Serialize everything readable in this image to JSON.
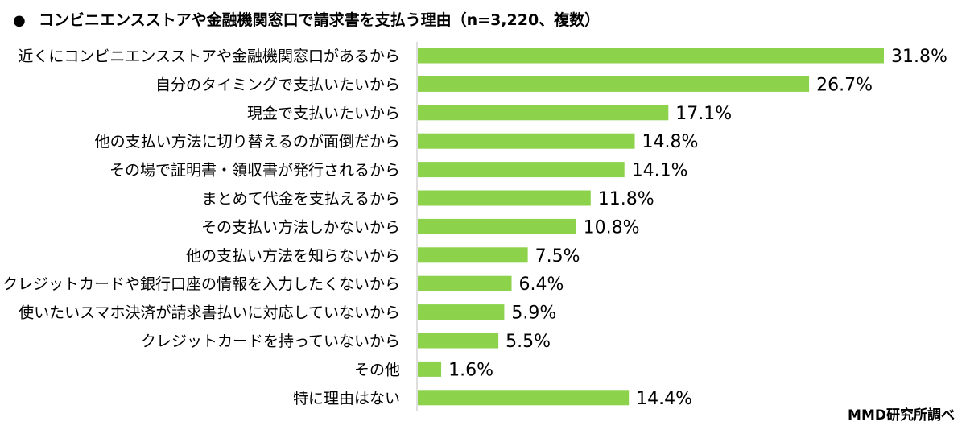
{
  "colors": {
    "bar": "#8cd24a",
    "axis": "#bfbfbf",
    "text": "#000000"
  },
  "title_bullet": "●",
  "source": "MMD研究所調べ",
  "chart_data": {
    "type": "bar",
    "orientation": "horizontal",
    "title": "コンビニエンスストアや金融機関窓口で請求書を支払う理由（n=3,220、複数）",
    "xlabel": "",
    "ylabel": "",
    "value_suffix": "%",
    "xlim": [
      0,
      31.8
    ],
    "grid": false,
    "legend": "none",
    "categories": [
      "近くにコンビニエンスストアや金融機関窓口があるから",
      "自分のタイミングで支払いたいから",
      "現金で支払いたいから",
      "他の支払い方法に切り替えるのが面倒だから",
      "その場で証明書・領収書が発行されるから",
      "まとめて代金を支払えるから",
      "その支払い方法しかないから",
      "他の支払い方法を知らないから",
      "クレジットカードや銀行口座の情報を入力したくないから",
      "使いたいスマホ決済が請求書払いに対応していないから",
      "クレジットカードを持っていないから",
      "その他",
      "特に理由はない"
    ],
    "values": [
      31.8,
      26.7,
      17.1,
      14.8,
      14.1,
      11.8,
      10.8,
      7.5,
      6.4,
      5.9,
      5.5,
      1.6,
      14.4
    ],
    "value_labels": [
      "31.8%",
      "26.7%",
      "17.1%",
      "14.8%",
      "14.1%",
      "11.8%",
      "10.8%",
      "7.5%",
      "6.4%",
      "5.9%",
      "5.5%",
      "1.6%",
      "14.4%"
    ]
  }
}
